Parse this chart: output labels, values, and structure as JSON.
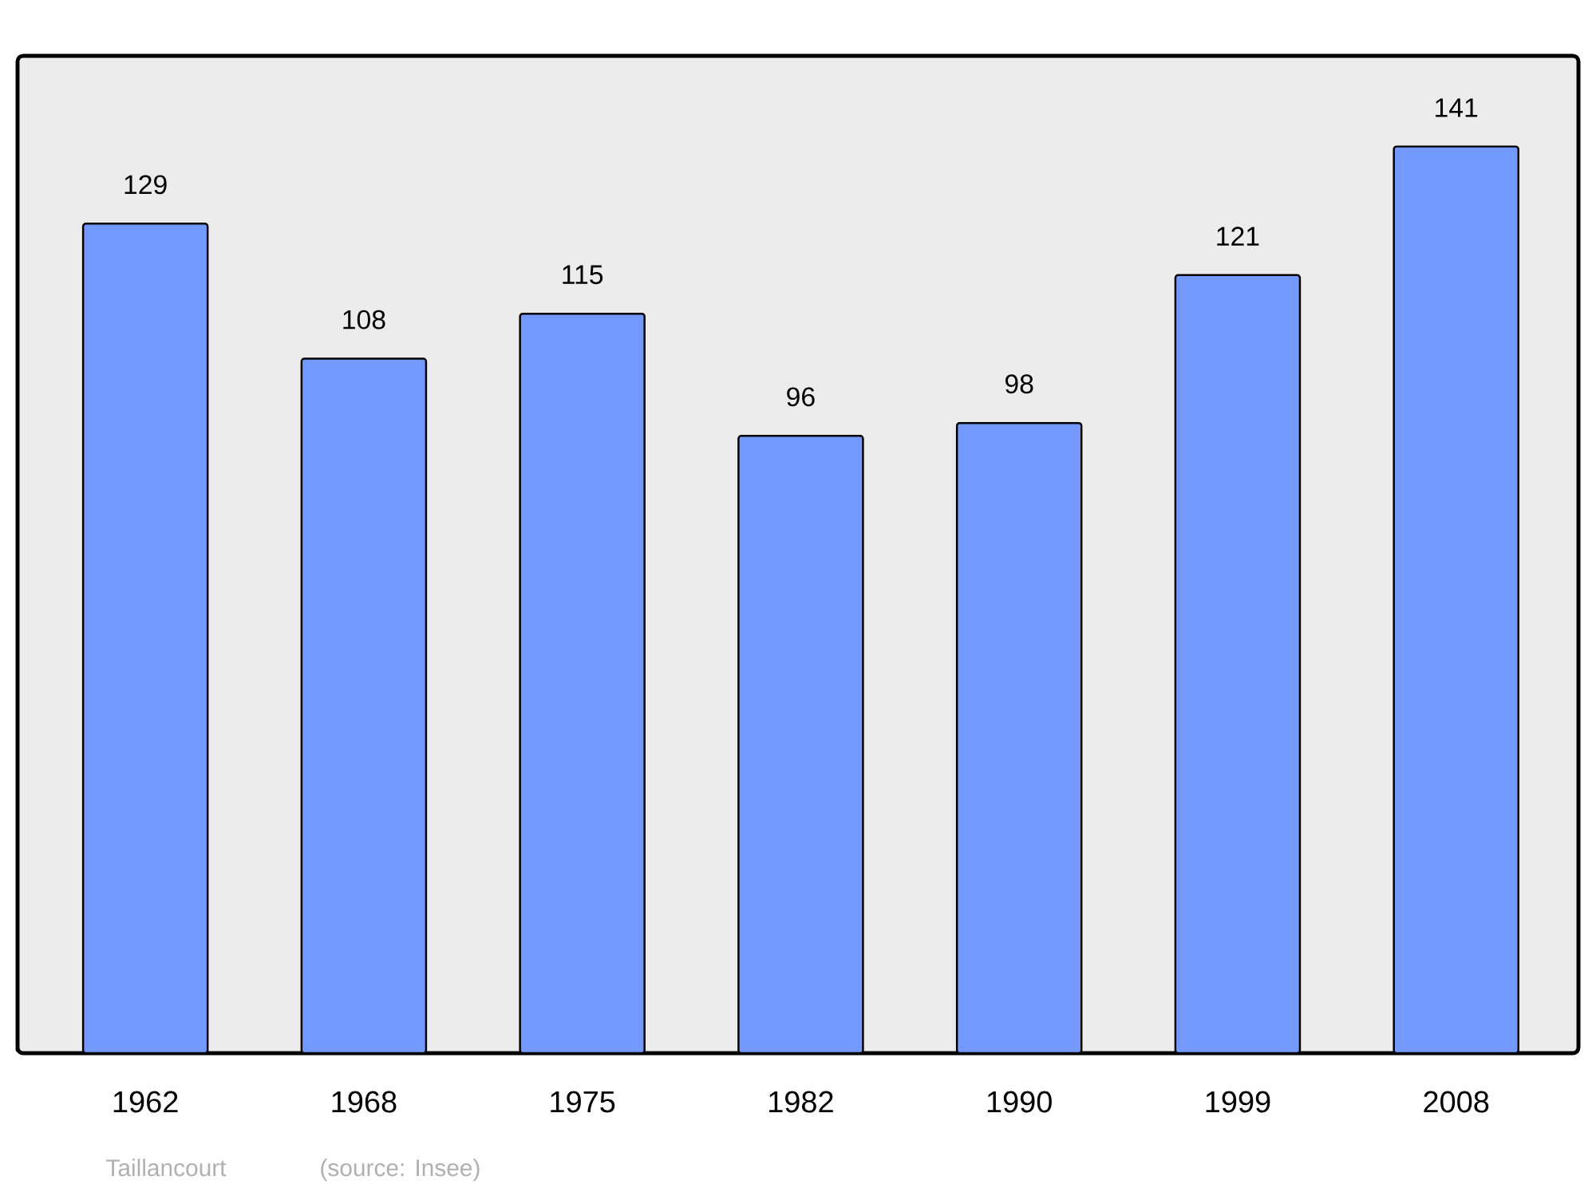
{
  "chart_data": {
    "type": "bar",
    "categories": [
      "1962",
      "1968",
      "1975",
      "1982",
      "1990",
      "1999",
      "2008"
    ],
    "values": [
      129,
      108,
      115,
      96,
      98,
      121,
      141
    ],
    "color": "#7399ff",
    "data_labels": true,
    "annotations": [
      "Taillancourt",
      "(source: Insee)"
    ]
  }
}
